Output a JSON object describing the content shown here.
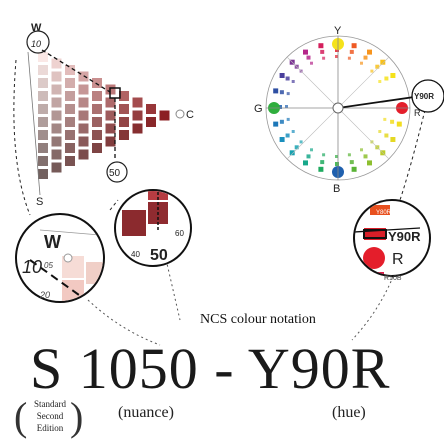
{
  "caption": "NCS colour notation",
  "notation": {
    "code": "S 1050 - Y90R",
    "nuance_label": "(nuance)",
    "hue_label": "(hue)"
  },
  "edition": [
    "Standard",
    "Second",
    "Edition"
  ],
  "triangle": {
    "corner_w": "W",
    "corner_c": "C",
    "corner_s": "S",
    "marker_top": "10",
    "marker_mid": "50"
  },
  "zoom_triangle": {
    "w": "W",
    "num_10": "10",
    "num_05": "05",
    "num_20": "20"
  },
  "zoom_nuance": {
    "num_40": "40",
    "num_50": "50",
    "num_60": "60"
  },
  "hue_circle": {
    "y": "Y",
    "r": "R",
    "b": "B",
    "g": "G",
    "marker": "Y90R"
  },
  "zoom_hue": {
    "y80r": "Y80R",
    "y90r": "Y90R",
    "r": "R",
    "r10b": "R10B"
  },
  "colors": {
    "target_red": "#8b2a2e",
    "hue_red": "#e41e2b"
  }
}
